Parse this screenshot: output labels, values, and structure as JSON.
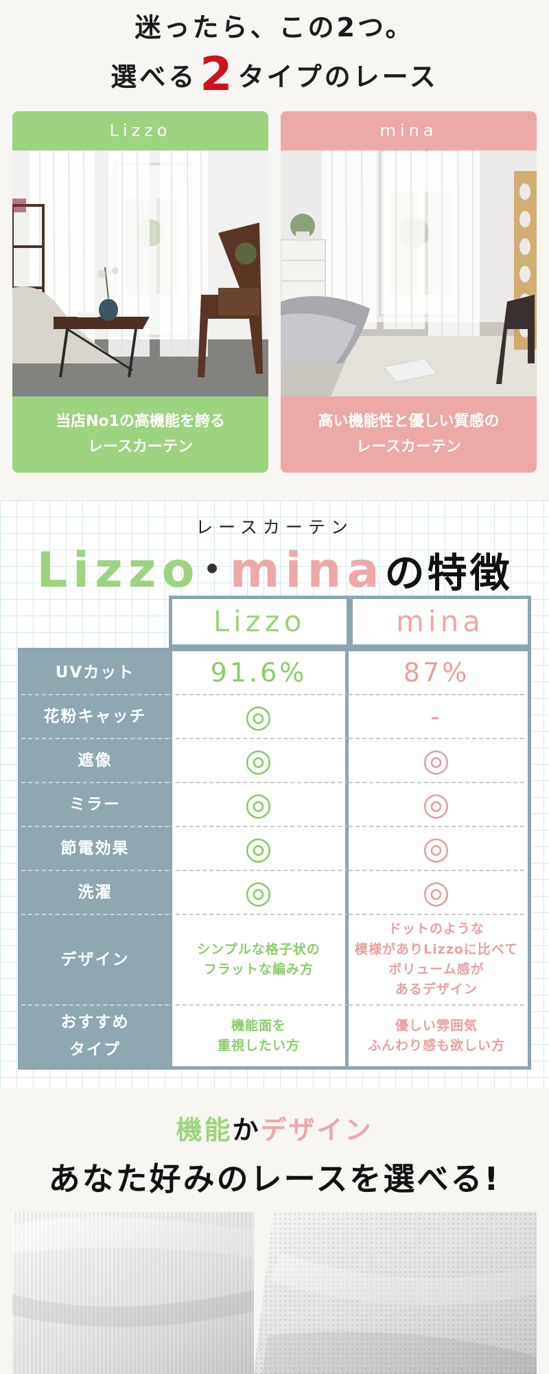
{
  "intro": {
    "line1": "迷ったら、この2つ。",
    "line2_before": "選べる",
    "line2_num": "2",
    "line2_after": "タイプのレース"
  },
  "products": [
    {
      "name": "Lizzo",
      "desc": "当店No1の高機能を誇る\nレースカーテン",
      "color": "#9dd47f"
    },
    {
      "name": "mina",
      "desc": "高い機能性と優しい質感の\nレースカーテン",
      "color": "#eda8a8"
    }
  ],
  "features": {
    "eyebrow": "レースカーテン",
    "title_lizzo": "Lizzo",
    "title_dot": "･",
    "title_mina": "mina",
    "title_tail": "の特徴",
    "columns": [
      "Lizzo",
      "mina"
    ],
    "rows": [
      {
        "label": "UVカット",
        "lizzo": "91.6%",
        "mina": "87%"
      },
      {
        "label": "花粉キャッチ",
        "lizzo": "◎",
        "mina": "-"
      },
      {
        "label": "遮像",
        "lizzo": "◎",
        "mina": "◎"
      },
      {
        "label": "ミラー",
        "lizzo": "◎",
        "mina": "◎"
      },
      {
        "label": "節電効果",
        "lizzo": "◎",
        "mina": "◎"
      },
      {
        "label": "洗濯",
        "lizzo": "◎",
        "mina": "◎"
      },
      {
        "label": "デザイン",
        "lizzo": "シンプルな格子状の\nフラットな編み方",
        "mina": "ドットのような\n模様がありLizzoに比べて\nボリューム感が\nあるデザイン"
      },
      {
        "label": "おすすめ\nタイプ",
        "lizzo": "機能面を\n重視したい方",
        "mina": "優しい雰囲気\nふんわり感も欲しい方"
      }
    ]
  },
  "choose": {
    "word1": "機能",
    "joiner": "か",
    "word2": "デザイン",
    "headline": "あなた好みのレースを選べる!"
  },
  "colors": {
    "lizzo_green": "#9dd47f",
    "mina_pink": "#eda8a8",
    "table_slate": "#8ea7b1",
    "accent_red": "#d0121b"
  }
}
